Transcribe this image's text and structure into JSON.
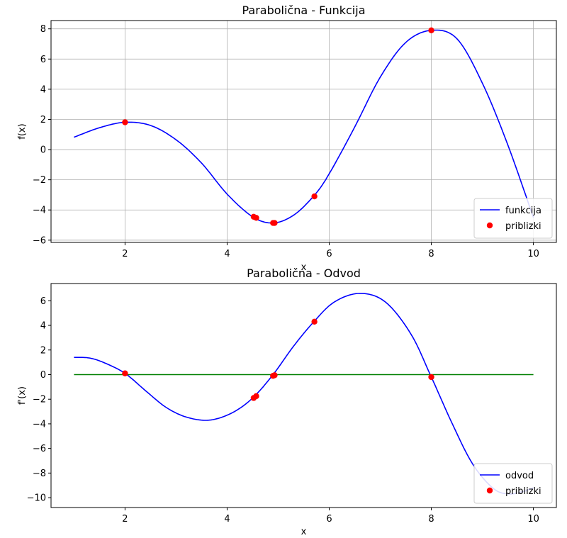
{
  "chart_data": [
    {
      "type": "line",
      "title": "Parabolična - Funkcija",
      "xlabel": "x",
      "ylabel": "f(x)",
      "xlim": [
        0.55,
        10.45
      ],
      "ylim": [
        -6.15,
        8.55
      ],
      "xticks": [
        2,
        4,
        6,
        8,
        10
      ],
      "yticks": [
        -6,
        -4,
        -2,
        0,
        2,
        4,
        6,
        8
      ],
      "grid": true,
      "legend_position": "lower-right",
      "series": [
        {
          "name": "funkcija",
          "color": "#0000ff",
          "style": "line",
          "x": [
            1.0,
            1.5,
            2.0,
            2.5,
            3.0,
            3.5,
            4.0,
            4.5,
            4.9,
            5.3,
            5.7,
            6.0,
            6.5,
            7.0,
            7.5,
            8.0,
            8.5,
            9.0,
            9.5,
            10.0
          ],
          "y": [
            0.82,
            1.45,
            1.81,
            1.6,
            0.65,
            -0.9,
            -2.95,
            -4.45,
            -4.86,
            -4.35,
            -3.06,
            -1.6,
            1.5,
            4.8,
            7.1,
            7.9,
            7.35,
            4.4,
            0.3,
            -4.5
          ]
        },
        {
          "name": "priblizki",
          "color": "#ff0000",
          "style": "markers",
          "x": [
            2.0,
            4.52,
            4.57,
            4.9,
            4.93,
            5.71,
            8.0
          ],
          "y": [
            1.81,
            -4.45,
            -4.52,
            -4.86,
            -4.86,
            -3.1,
            7.9
          ]
        }
      ]
    },
    {
      "type": "line",
      "title": "Parabolična - Odvod",
      "xlabel": "x",
      "ylabel": "f'(x)",
      "xlim": [
        0.55,
        10.45
      ],
      "ylim": [
        -10.8,
        7.4
      ],
      "xticks": [
        2,
        4,
        6,
        8,
        10
      ],
      "yticks": [
        -10,
        -8,
        -6,
        -4,
        -2,
        0,
        2,
        4,
        6
      ],
      "grid": false,
      "legend_position": "lower-right",
      "series": [
        {
          "name": "odvod",
          "color": "#0000ff",
          "style": "line",
          "x": [
            1.0,
            1.3,
            1.6,
            2.0,
            2.4,
            2.8,
            3.2,
            3.65,
            4.1,
            4.5,
            4.9,
            5.3,
            5.7,
            6.1,
            6.6,
            7.1,
            7.6,
            8.0,
            8.4,
            8.8,
            9.2,
            9.5,
            9.8,
            10.0
          ],
          "y": [
            1.4,
            1.35,
            0.95,
            0.1,
            -1.3,
            -2.65,
            -3.45,
            -3.7,
            -3.1,
            -1.9,
            0.0,
            2.3,
            4.3,
            5.9,
            6.6,
            5.9,
            3.3,
            -0.2,
            -3.9,
            -7.2,
            -9.2,
            -9.7,
            -9.5,
            -9.2
          ]
        },
        {
          "name": "",
          "color": "#008000",
          "style": "line",
          "x": [
            1.0,
            10.0
          ],
          "y": [
            0.0,
            0.0
          ]
        },
        {
          "name": "priblizki",
          "color": "#ff0000",
          "style": "markers",
          "x": [
            2.0,
            4.52,
            4.57,
            4.9,
            4.93,
            5.71,
            8.0
          ],
          "y": [
            0.1,
            -1.9,
            -1.75,
            -0.1,
            -0.05,
            4.3,
            -0.2
          ]
        }
      ]
    }
  ]
}
